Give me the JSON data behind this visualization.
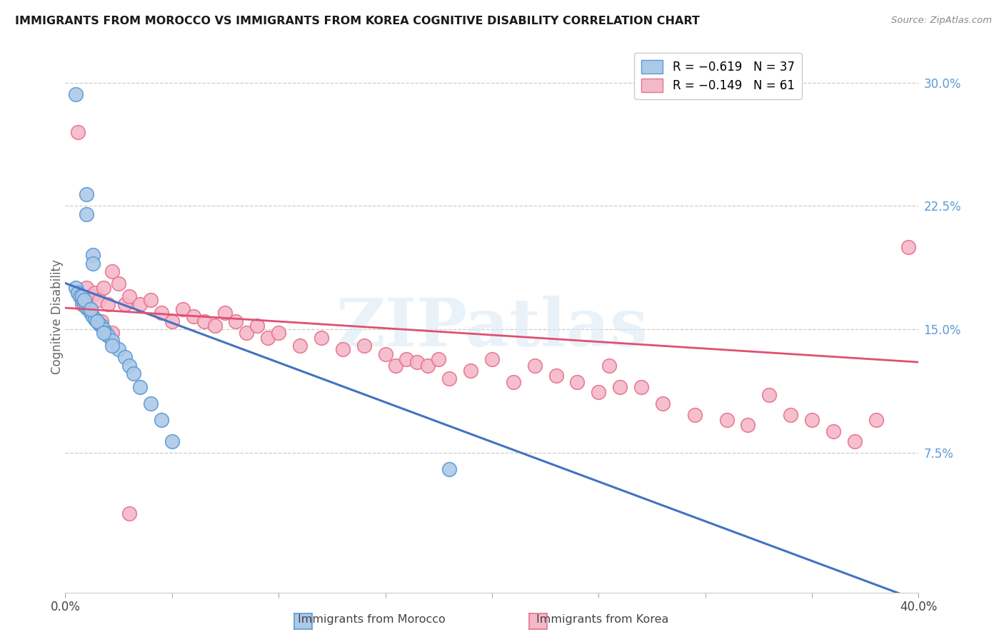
{
  "title": "IMMIGRANTS FROM MOROCCO VS IMMIGRANTS FROM KOREA COGNITIVE DISABILITY CORRELATION CHART",
  "source": "Source: ZipAtlas.com",
  "ylabel": "Cognitive Disability",
  "right_yticks": [
    "30.0%",
    "22.5%",
    "15.0%",
    "7.5%"
  ],
  "right_ytick_vals": [
    0.3,
    0.225,
    0.15,
    0.075
  ],
  "xlim": [
    0.0,
    0.4
  ],
  "ylim": [
    -0.01,
    0.325
  ],
  "legend_r_morocco": "R = −0.619   N = 37",
  "legend_r_korea": "R = −0.149   N = 61",
  "legend_label_morocco": "Immigrants from Morocco",
  "legend_label_korea": "Immigrants from Korea",
  "color_morocco_face": "#adc9e8",
  "color_korea_face": "#f5b8cb",
  "color_morocco_edge": "#5b9bd5",
  "color_korea_edge": "#e8728a",
  "line_color_morocco": "#4472c4",
  "line_color_korea": "#e05070",
  "watermark_text": "ZIPatlas",
  "morocco_x": [
    0.005,
    0.01,
    0.01,
    0.013,
    0.013,
    0.005,
    0.006,
    0.007,
    0.008,
    0.009,
    0.01,
    0.011,
    0.012,
    0.013,
    0.014,
    0.015,
    0.016,
    0.017,
    0.018,
    0.019,
    0.02,
    0.022,
    0.025,
    0.028,
    0.03,
    0.032,
    0.035,
    0.04,
    0.045,
    0.05,
    0.008,
    0.009,
    0.012,
    0.015,
    0.018,
    0.022,
    0.18
  ],
  "morocco_y": [
    0.293,
    0.232,
    0.22,
    0.195,
    0.19,
    0.175,
    0.172,
    0.17,
    0.168,
    0.165,
    0.163,
    0.162,
    0.16,
    0.158,
    0.156,
    0.155,
    0.153,
    0.152,
    0.15,
    0.148,
    0.146,
    0.143,
    0.138,
    0.133,
    0.128,
    0.123,
    0.115,
    0.105,
    0.095,
    0.082,
    0.17,
    0.168,
    0.162,
    0.155,
    0.148,
    0.14,
    0.065
  ],
  "korea_x": [
    0.006,
    0.008,
    0.01,
    0.012,
    0.014,
    0.016,
    0.018,
    0.02,
    0.022,
    0.025,
    0.028,
    0.03,
    0.035,
    0.04,
    0.045,
    0.05,
    0.055,
    0.06,
    0.065,
    0.07,
    0.075,
    0.08,
    0.085,
    0.09,
    0.095,
    0.1,
    0.11,
    0.12,
    0.13,
    0.14,
    0.15,
    0.155,
    0.16,
    0.165,
    0.17,
    0.175,
    0.18,
    0.19,
    0.2,
    0.21,
    0.22,
    0.23,
    0.24,
    0.25,
    0.255,
    0.26,
    0.27,
    0.28,
    0.295,
    0.31,
    0.32,
    0.33,
    0.34,
    0.35,
    0.36,
    0.37,
    0.38,
    0.395,
    0.017,
    0.022,
    0.03
  ],
  "korea_y": [
    0.27,
    0.165,
    0.175,
    0.17,
    0.172,
    0.168,
    0.175,
    0.165,
    0.185,
    0.178,
    0.165,
    0.17,
    0.165,
    0.168,
    0.16,
    0.155,
    0.162,
    0.158,
    0.155,
    0.152,
    0.16,
    0.155,
    0.148,
    0.152,
    0.145,
    0.148,
    0.14,
    0.145,
    0.138,
    0.14,
    0.135,
    0.128,
    0.132,
    0.13,
    0.128,
    0.132,
    0.12,
    0.125,
    0.132,
    0.118,
    0.128,
    0.122,
    0.118,
    0.112,
    0.128,
    0.115,
    0.115,
    0.105,
    0.098,
    0.095,
    0.092,
    0.11,
    0.098,
    0.095,
    0.088,
    0.082,
    0.095,
    0.2,
    0.155,
    0.148,
    0.038
  ],
  "morocco_line_x": [
    0.0,
    0.4
  ],
  "morocco_line_y": [
    0.178,
    -0.015
  ],
  "korea_line_x": [
    0.0,
    0.4
  ],
  "korea_line_y": [
    0.163,
    0.13
  ]
}
